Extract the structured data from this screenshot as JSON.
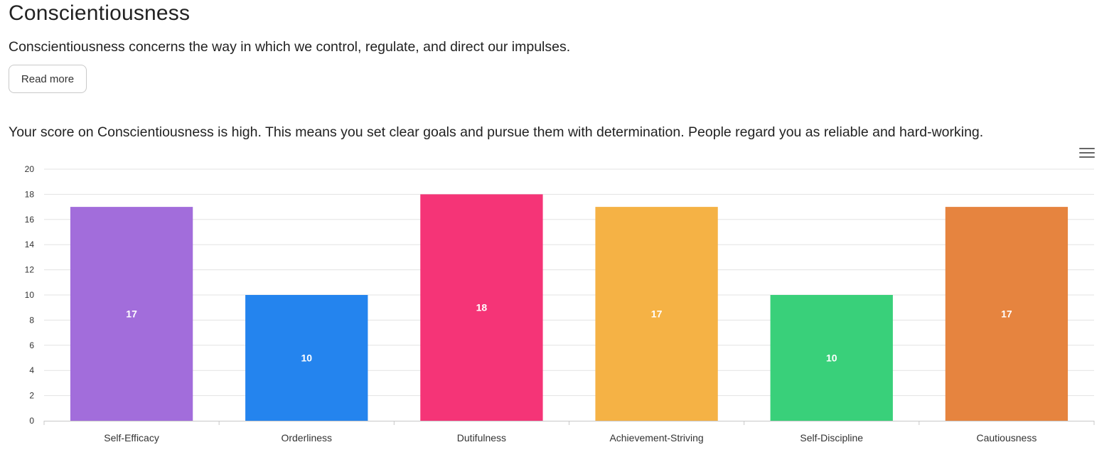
{
  "header": {
    "title": "Conscientiousness",
    "description": "Conscientiousness concerns the way in which we control, regulate, and direct our impulses.",
    "read_more_label": "Read more",
    "score_text": "Your score on Conscientiousness is high. This means you set clear goals and pursue them with determination. People regard you as reliable and hard-working."
  },
  "chart_menu": {
    "icon": "hamburger-menu-icon"
  },
  "chart_data": {
    "type": "bar",
    "categories": [
      "Self-Efficacy",
      "Orderliness",
      "Dutifulness",
      "Achievement-Striving",
      "Self-Discipline",
      "Cautiousness"
    ],
    "values": [
      17,
      10,
      18,
      17,
      10,
      17
    ],
    "colors": [
      "#a26ddb",
      "#2484ee",
      "#f53477",
      "#f5b245",
      "#39d07a",
      "#e6843f"
    ],
    "ylim": [
      0,
      20
    ],
    "yticks": [
      "0",
      "2",
      "4",
      "6",
      "8",
      "10",
      "12",
      "14",
      "16",
      "18",
      "20"
    ],
    "data_labels": [
      "17",
      "10",
      "18",
      "17",
      "10",
      "17"
    ],
    "grid": true,
    "title": "",
    "xlabel": "",
    "ylabel": ""
  }
}
